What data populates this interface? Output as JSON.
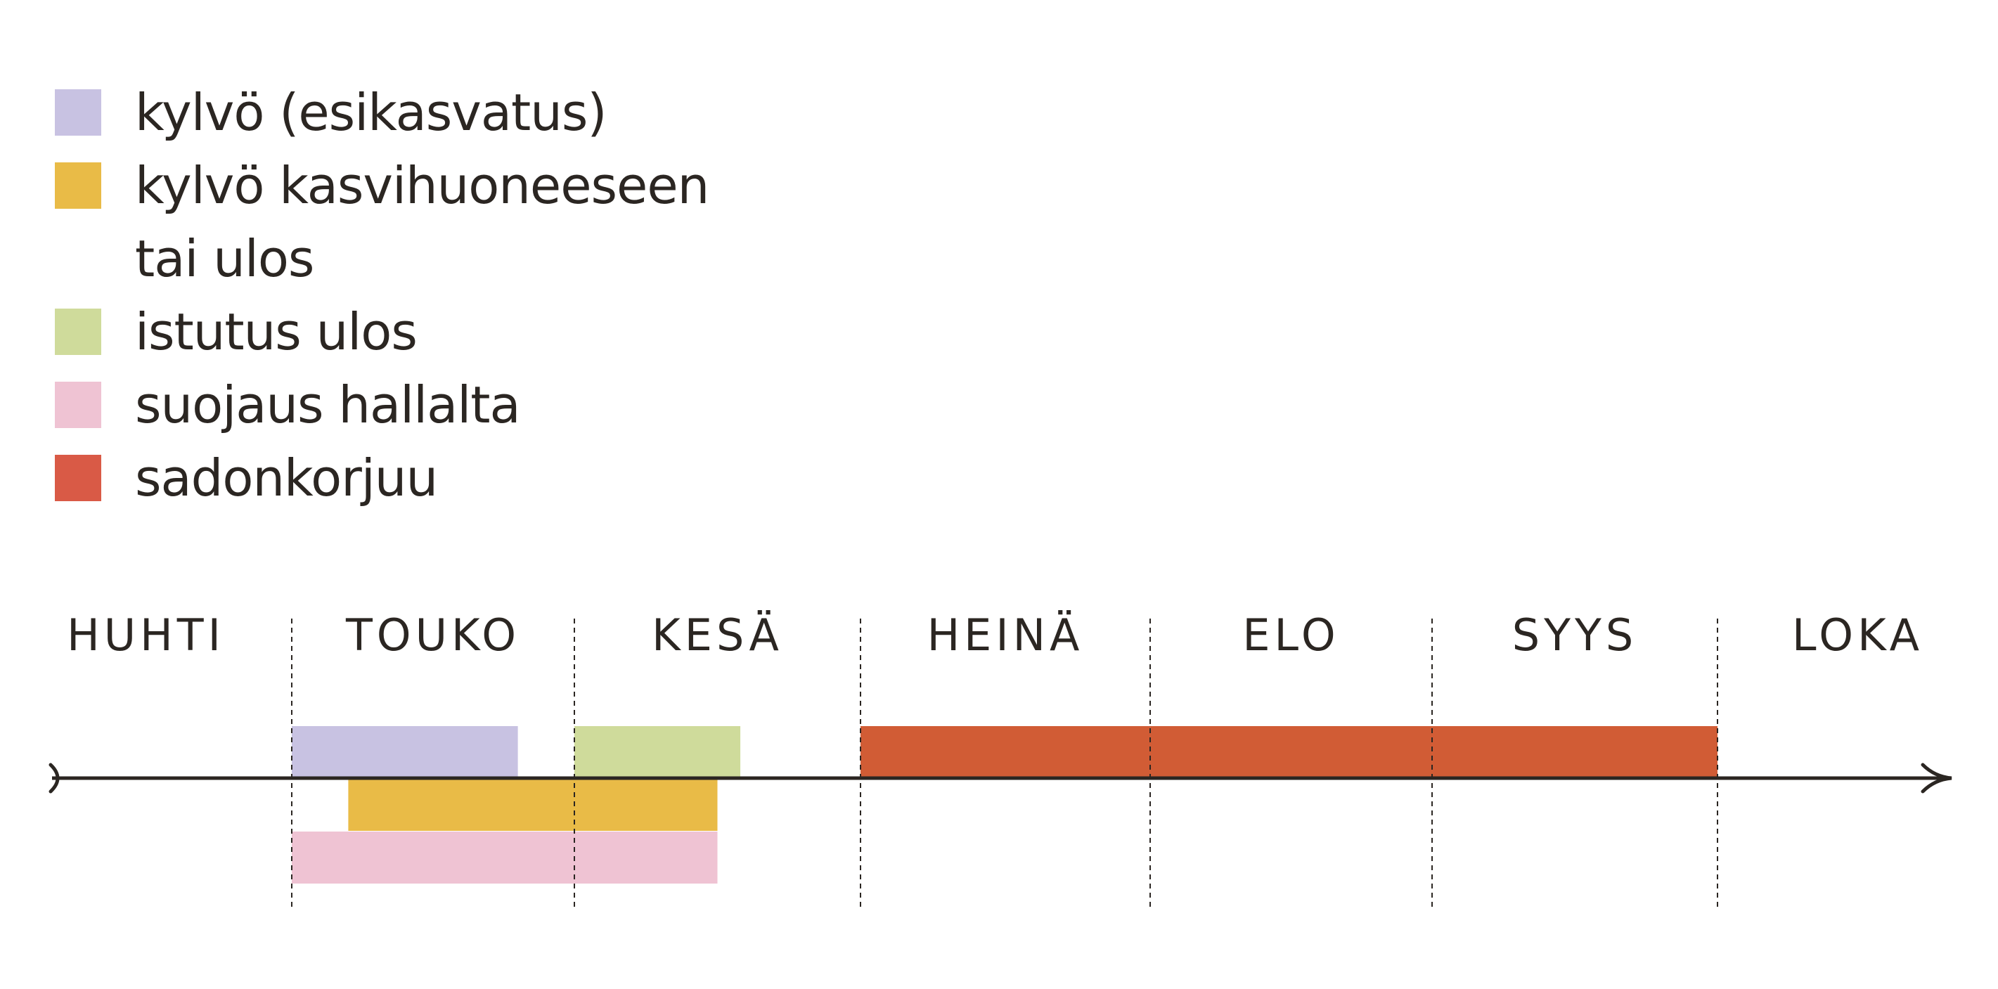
{
  "legend": [
    {
      "label": "kylvö (esikasvatus)",
      "color": "#c8c2e2",
      "series": "kylvo-esikasvatus"
    },
    {
      "label": "kylvö kasvihuoneeseen",
      "color": "#e9bb47",
      "series": "kylvo-kasvihuone"
    },
    {
      "label": "tai ulos",
      "color": null,
      "series": null
    },
    {
      "label": "istutus ulos",
      "color": "#cfdb9b",
      "series": "istutus"
    },
    {
      "label": "suojaus hallalta",
      "color": "#efc3d3",
      "series": "suojaus"
    },
    {
      "label": "sadonkorjuu",
      "color": "#d95a46",
      "series": "sadonkorjuu"
    }
  ],
  "chart_data": {
    "type": "bar",
    "orientation": "horizontal-timeline",
    "months": [
      "HUHTI",
      "TOUKO",
      "KESÄ",
      "HEINÄ",
      "ELO",
      "SYYS",
      "LOKA"
    ],
    "x_unit": "month",
    "xlim": [
      0,
      7
    ],
    "grid": "dashed vertical month boundaries",
    "legend_position": "top-left",
    "series": [
      {
        "name": "kylvö (esikasvatus)",
        "color": "#c8c2e2",
        "row": "above-axis",
        "start": 1.0,
        "end": 1.8
      },
      {
        "name": "istutus ulos",
        "color": "#cfdb9b",
        "row": "above-axis",
        "start": 2.0,
        "end": 2.58
      },
      {
        "name": "sadonkorjuu",
        "color": "#d15c35",
        "row": "above-axis",
        "start": 3.0,
        "end": 6.0
      },
      {
        "name": "kylvö kasvihuoneeseen tai ulos",
        "color": "#e9bb47",
        "row": "below-axis-1",
        "start": 1.2,
        "end": 2.5
      },
      {
        "name": "suojaus hallalta",
        "color": "#efc3d3",
        "row": "below-axis-2",
        "start": 1.0,
        "end": 2.5
      }
    ]
  }
}
